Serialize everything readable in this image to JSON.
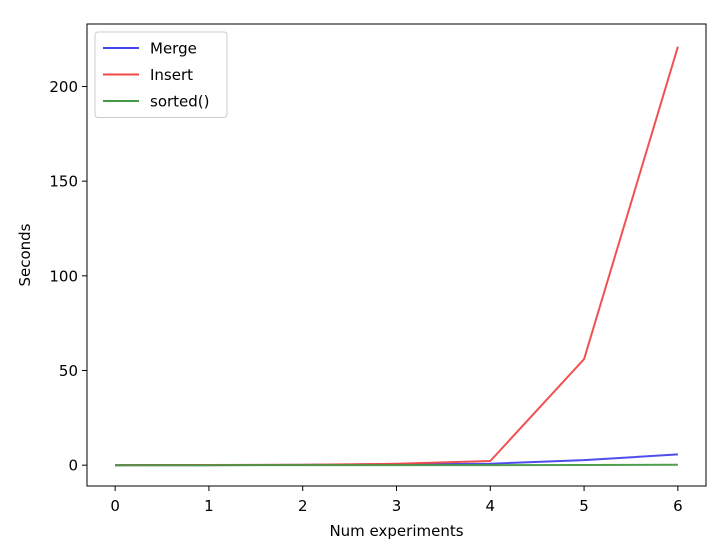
{
  "chart_data": {
    "type": "line",
    "title": "",
    "xlabel": "Num experiments",
    "ylabel": "Seconds",
    "x": [
      0,
      1,
      2,
      3,
      4,
      5,
      6
    ],
    "xlim": [
      -0.3,
      6.3
    ],
    "ylim": [
      -11,
      233
    ],
    "xticks": [
      0,
      1,
      2,
      3,
      4,
      5,
      6
    ],
    "yticks": [
      0,
      50,
      100,
      150,
      200
    ],
    "grid": false,
    "legend_position": "top-left",
    "series": [
      {
        "name": "Merge",
        "color": "#4444ee",
        "values": [
          0,
          0.05,
          0.15,
          0.5,
          0.8,
          2.7,
          5.7
        ]
      },
      {
        "name": "Insert",
        "color": "#f04848",
        "values": [
          0,
          0.1,
          0.2,
          0.7,
          2.2,
          56,
          221
        ]
      },
      {
        "name": "sorted()",
        "color": "#449944",
        "values": [
          0,
          0.01,
          0.02,
          0.03,
          0.05,
          0.1,
          0.2
        ]
      }
    ]
  }
}
